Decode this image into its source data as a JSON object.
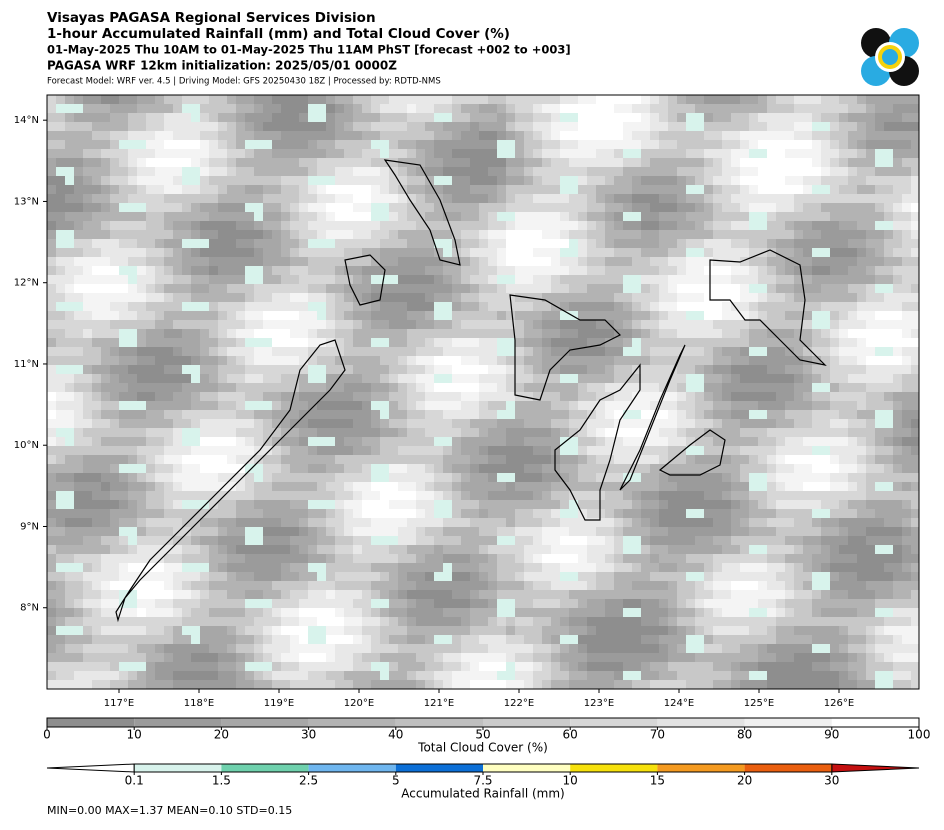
{
  "header": {
    "line1": "Visayas PAGASA Regional Services Division",
    "line2": "1-hour Accumulated Rainfall (mm) and Total Cloud Cover (%)",
    "line3": "01-May-2025 Thu 10AM to 01-May-2025 Thu 11AM PhST [forecast +002 to +003]",
    "line4": "PAGASA WRF 12km initialization: 2025/05/01 0000Z",
    "line5": "Forecast Model: WRF ver. 4.5 | Driving Model: GFS 20250430 18Z | Processed by: RDTD-NMS"
  },
  "map": {
    "xlim": [
      116.1,
      127.0
    ],
    "ylim": [
      7.0,
      14.31
    ],
    "xticks": [
      {
        "value": 117,
        "label": "117°E"
      },
      {
        "value": 118,
        "label": "118°E"
      },
      {
        "value": 119,
        "label": "119°E"
      },
      {
        "value": 120,
        "label": "120°E"
      },
      {
        "value": 121,
        "label": "121°E"
      },
      {
        "value": 122,
        "label": "122°E"
      },
      {
        "value": 123,
        "label": "123°E"
      },
      {
        "value": 124,
        "label": "124°E"
      },
      {
        "value": 125,
        "label": "125°E"
      },
      {
        "value": 126,
        "label": "126°E"
      }
    ],
    "yticks": [
      {
        "value": 8,
        "label": "8°N"
      },
      {
        "value": 9,
        "label": "9°N"
      },
      {
        "value": 10,
        "label": "10°N"
      },
      {
        "value": 11,
        "label": "11°N"
      },
      {
        "value": 12,
        "label": "12°N"
      },
      {
        "value": 13,
        "label": "13°N"
      },
      {
        "value": 14,
        "label": "14°N"
      }
    ]
  },
  "cloud_colorbar": {
    "label": "Total Cloud Cover (%)",
    "lim": [
      0,
      100
    ],
    "ticks": [
      0,
      10,
      20,
      30,
      40,
      50,
      60,
      70,
      80,
      90,
      100
    ],
    "colors": [
      "#8e8e8e",
      "#9b9b9b",
      "#a7a7a7",
      "#b3b3b3",
      "#bfbfbf",
      "#cbcbcb",
      "#d7d7d7",
      "#e3e3e3",
      "#f0f0f0",
      "#ffffff"
    ]
  },
  "rain_colorbar": {
    "label": "Accumulated Rainfall (mm)",
    "ticks": [
      0.1,
      1.5,
      2.5,
      5,
      7.5,
      10,
      15,
      20,
      30
    ],
    "colors": [
      "#d8f3ec",
      "#6fd1ad",
      "#6fb6ef",
      "#0c6fd6",
      "#fefec0",
      "#f6e10c",
      "#f49a20",
      "#ea5f0f"
    ],
    "under_color": "#ffffff",
    "over_color": "#c41010"
  },
  "stats": "MIN=0.00   MAX=1.37   MEAN=0.10   STD=0.15"
}
